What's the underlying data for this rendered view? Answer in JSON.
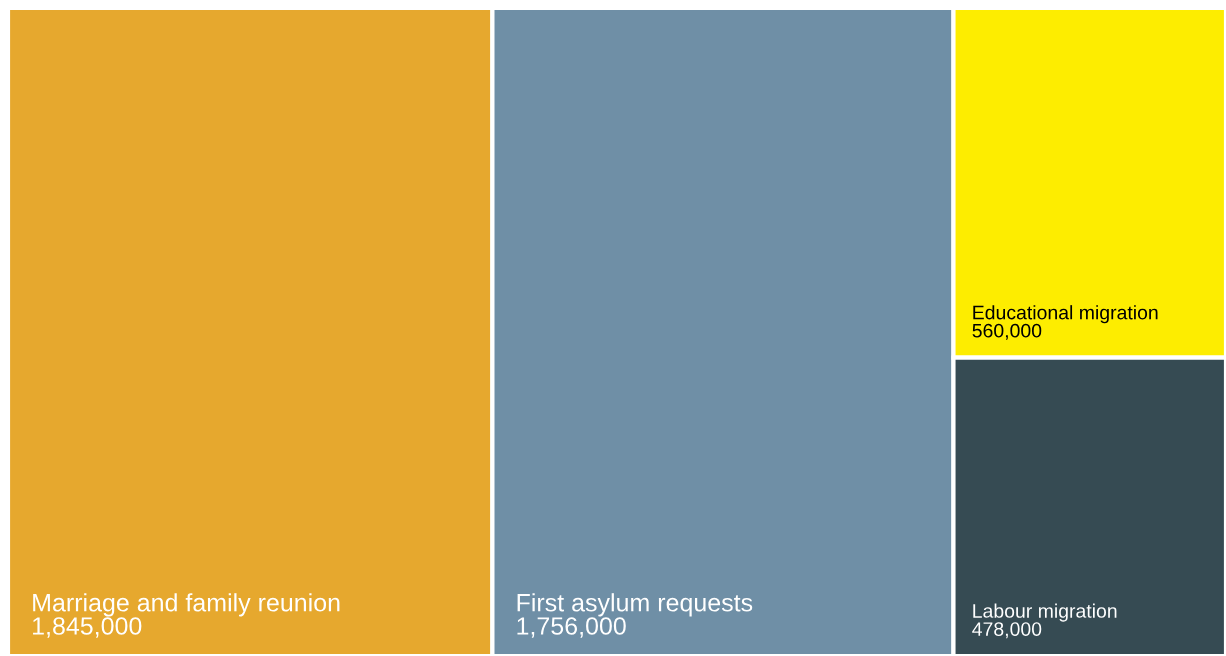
{
  "chart_data": {
    "type": "other",
    "categories": [
      "Marriage and family reunion",
      "First asylum requests",
      "Educational migration",
      "Labour migration"
    ],
    "values": [
      1845000,
      1756000,
      560000,
      478000
    ],
    "value_labels": [
      "1,845,000",
      "1,756,000",
      "560,000",
      "478,000"
    ],
    "colors": [
      "#e6a82e",
      "#6f8fa6",
      "#fded00",
      "#364b53"
    ]
  }
}
